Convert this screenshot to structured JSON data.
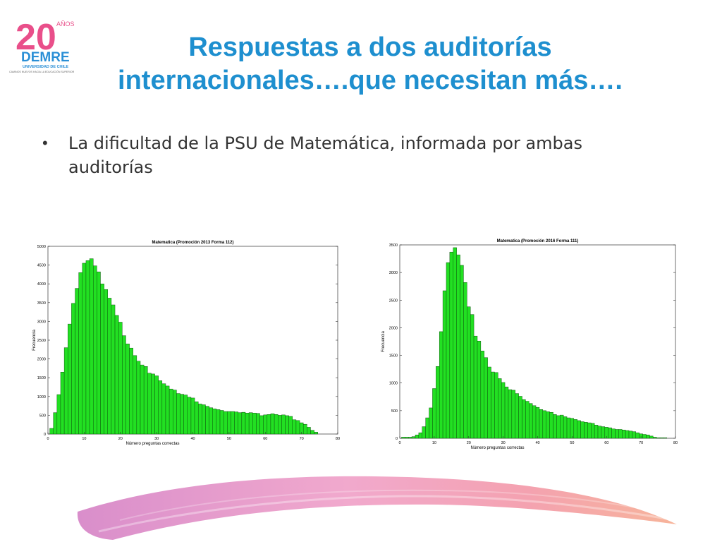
{
  "logo": {
    "number": "20",
    "anos": "AÑOS",
    "name": "DEMRE",
    "subtitle": "UNIVERSIDAD DE CHILE",
    "tagline": "CAMINOS NUEVOS HACIA LA EDUCACIÓN SUPERIOR",
    "colors": {
      "two": "#e94f8a",
      "zero": "#36b3a8",
      "demre": "#2a8fd6",
      "anos": "#e94f8a"
    }
  },
  "slide": {
    "title_line1": "Respuestas a dos auditorías",
    "title_line2": "internacionales….que necesitan más….",
    "bullet_symbol": "•",
    "bullet_text": "La dificultad de la PSU de Matemática, informada por ambas auditorías",
    "accent_color": "#1e8fcf"
  },
  "chart_data": [
    {
      "type": "bar",
      "title": "Matematica (Promoción 2013 Forma 112)",
      "xlabel": "Número preguntas correctas",
      "ylabel": "Frecuencia",
      "xlim": [
        0,
        80
      ],
      "ylim": [
        0,
        5000
      ],
      "xticks": [
        0,
        10,
        20,
        30,
        40,
        50,
        60,
        70,
        80
      ],
      "yticks": [
        0,
        500,
        1000,
        1500,
        2000,
        2500,
        3000,
        3500,
        4000,
        4500,
        5000
      ],
      "bar_color": "#22e022",
      "grid": false,
      "x": [
        1,
        2,
        3,
        4,
        5,
        6,
        7,
        8,
        9,
        10,
        11,
        12,
        13,
        14,
        15,
        16,
        17,
        18,
        19,
        20,
        21,
        22,
        23,
        24,
        25,
        26,
        27,
        28,
        29,
        30,
        31,
        32,
        33,
        34,
        35,
        36,
        37,
        38,
        39,
        40,
        41,
        42,
        43,
        44,
        45,
        46,
        47,
        48,
        49,
        50,
        51,
        52,
        53,
        54,
        55,
        56,
        57,
        58,
        59,
        60,
        61,
        62,
        63,
        64,
        65,
        66,
        67,
        68,
        69,
        70,
        71,
        72,
        73,
        74
      ],
      "values": [
        150,
        570,
        1050,
        1650,
        2300,
        2930,
        3480,
        3880,
        4300,
        4550,
        4620,
        4670,
        4480,
        4320,
        4000,
        3850,
        3620,
        3440,
        3160,
        2980,
        2620,
        2400,
        2290,
        2090,
        1940,
        1840,
        1800,
        1620,
        1600,
        1550,
        1420,
        1340,
        1280,
        1200,
        1170,
        1080,
        1060,
        1040,
        980,
        960,
        860,
        800,
        780,
        740,
        700,
        670,
        650,
        630,
        600,
        600,
        600,
        590,
        570,
        580,
        560,
        570,
        560,
        550,
        490,
        510,
        520,
        540,
        520,
        500,
        510,
        490,
        470,
        380,
        360,
        300,
        260,
        180,
        100,
        50
      ]
    },
    {
      "type": "bar",
      "title": "Matematica (Promoción 2016 Forma 111)",
      "xlabel": "Número preguntas correctas",
      "ylabel": "Frecuencia",
      "xlim": [
        0,
        80
      ],
      "ylim": [
        0,
        3500
      ],
      "xticks": [
        0,
        10,
        20,
        30,
        40,
        50,
        60,
        70,
        80
      ],
      "yticks": [
        0,
        500,
        1000,
        1500,
        2000,
        2500,
        3000,
        3500
      ],
      "bar_color": "#22e022",
      "grid": false,
      "x": [
        1,
        2,
        3,
        4,
        5,
        6,
        7,
        8,
        9,
        10,
        11,
        12,
        13,
        14,
        15,
        16,
        17,
        18,
        19,
        20,
        21,
        22,
        23,
        24,
        25,
        26,
        27,
        28,
        29,
        30,
        31,
        32,
        33,
        34,
        35,
        36,
        37,
        38,
        39,
        40,
        41,
        42,
        43,
        44,
        45,
        46,
        47,
        48,
        49,
        50,
        51,
        52,
        53,
        54,
        55,
        56,
        57,
        58,
        59,
        60,
        61,
        62,
        63,
        64,
        65,
        66,
        67,
        68,
        69,
        70,
        71,
        72,
        73,
        74,
        75,
        76,
        77
      ],
      "values": [
        20,
        20,
        20,
        30,
        60,
        100,
        210,
        370,
        550,
        900,
        1300,
        1930,
        2670,
        3180,
        3370,
        3450,
        3320,
        3130,
        2820,
        2380,
        2240,
        1850,
        1760,
        1580,
        1460,
        1290,
        1200,
        1190,
        1080,
        1010,
        930,
        880,
        870,
        810,
        760,
        700,
        670,
        630,
        590,
        560,
        520,
        500,
        480,
        470,
        430,
        410,
        420,
        390,
        370,
        360,
        340,
        320,
        300,
        290,
        280,
        270,
        240,
        220,
        210,
        200,
        190,
        170,
        160,
        160,
        150,
        140,
        130,
        120,
        100,
        80,
        70,
        60,
        40,
        20,
        10,
        10,
        10
      ]
    }
  ]
}
